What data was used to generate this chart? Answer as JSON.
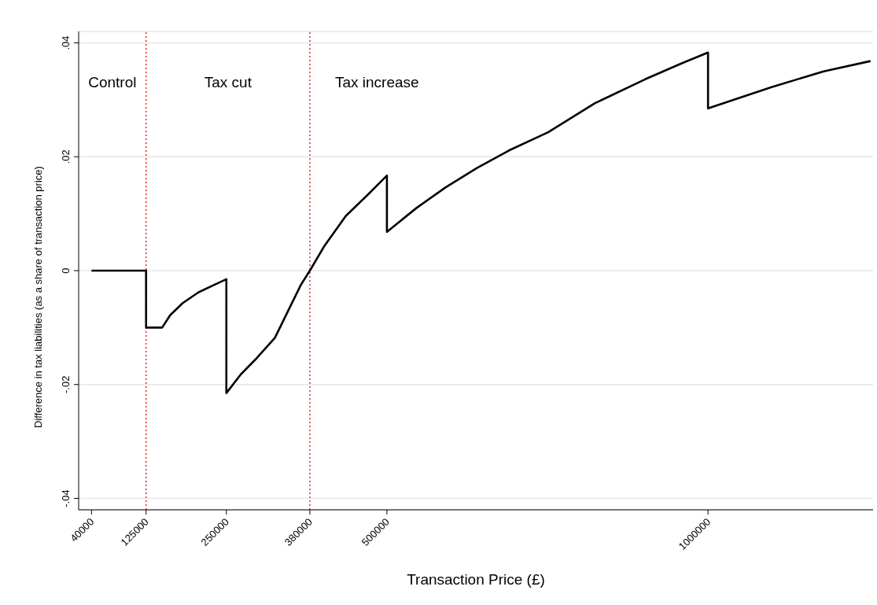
{
  "chart_data": {
    "type": "line",
    "xlabel": "Transaction Price (£)",
    "ylabel": "Difference in tax liabilities (as a share of transaction price)",
    "series": [
      {
        "color": "#000000",
        "x": [
          40000,
          125000,
          125000,
          150000,
          162600,
          182000,
          206700,
          231000,
          250000,
          250000,
          272600,
          297000,
          325600,
          346000,
          366000,
          380000,
          403000,
          436000,
          469000,
          500000,
          500000,
          546000,
          591000,
          640000,
          690000,
          751000,
          824000,
          902000,
          959000,
          1000000,
          1000000,
          1098000,
          1180000,
          1253000
        ],
        "values": [
          0,
          0,
          -0.01,
          -0.01,
          -0.0078,
          -0.0057,
          -0.0038,
          -0.0025,
          -0.0015,
          -0.0215,
          -0.0182,
          -0.0154,
          -0.0118,
          -0.0071,
          -0.0025,
          0,
          0.0044,
          0.0096,
          0.0132,
          0.0167,
          0.0068,
          0.011,
          0.0146,
          0.018,
          0.0211,
          0.0243,
          0.0294,
          0.0336,
          0.0364,
          0.0383,
          0.0285,
          0.0322,
          0.035,
          0.0368
        ]
      }
    ],
    "xlim": [
      20000,
      1257000
    ],
    "xticks": [
      40000,
      125000,
      250000,
      380000,
      500000,
      1000000
    ],
    "ylim": [
      -0.042,
      0.042
    ],
    "yticks": [
      {
        "value": -0.04,
        "label": "-.04"
      },
      {
        "value": -0.02,
        "label": "-.02"
      },
      0,
      {
        "value": 0.02,
        "label": ".02"
      },
      {
        "value": 0.04,
        "label": ".04"
      }
    ],
    "grid": "y",
    "ref_lines": [
      {
        "axis": "x",
        "value": 125000,
        "color": "#e8262b",
        "line_style": "dotted"
      },
      {
        "axis": "x",
        "value": 380000,
        "color": "#e8262b",
        "line_style": "dotted"
      }
    ],
    "annotations": [
      "Control",
      "Tax cut",
      "Tax increase"
    ],
    "legend": false,
    "marker": "none",
    "line_style": "solid"
  }
}
